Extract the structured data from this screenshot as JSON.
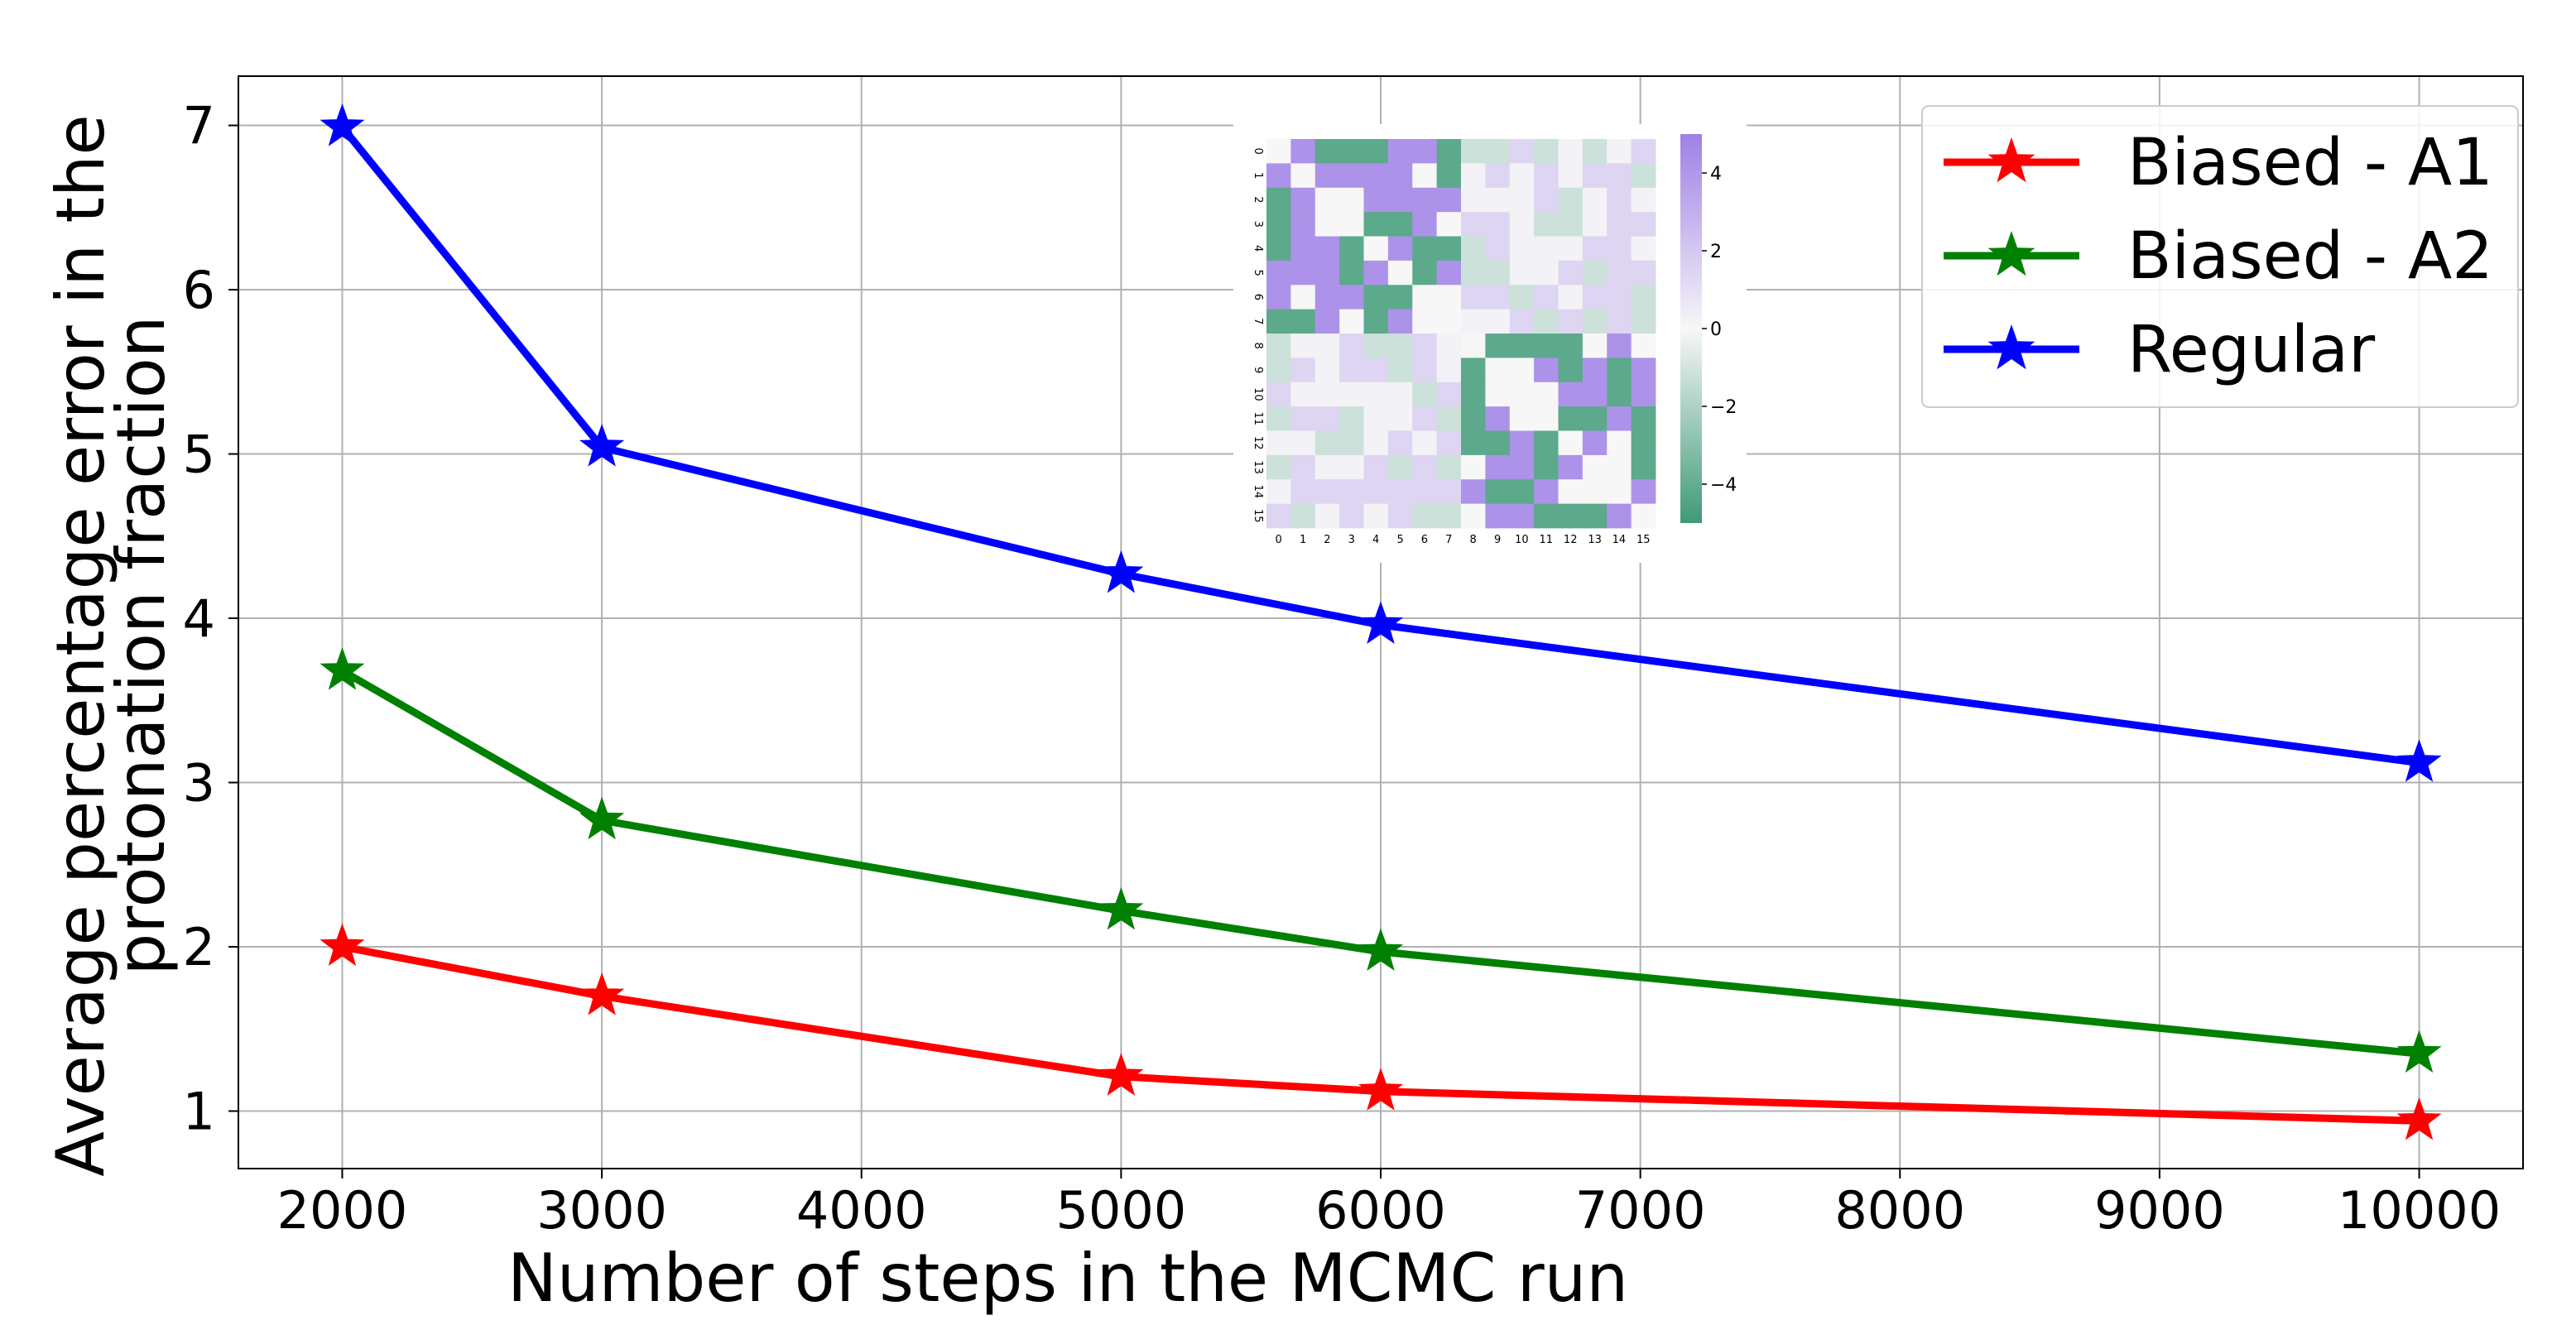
{
  "chart_data": {
    "type": "line",
    "title": "",
    "xlabel": "Number of steps in the MCMC run",
    "ylabel": [
      "Average percentage error in the",
      "protonation fraction"
    ],
    "xlim": [
      1600,
      10400
    ],
    "ylim": [
      0.65,
      7.3
    ],
    "xticks": [
      2000,
      3000,
      4000,
      5000,
      6000,
      7000,
      8000,
      9000,
      10000
    ],
    "yticks": [
      1,
      2,
      3,
      4,
      5,
      6,
      7
    ],
    "grid": true,
    "legend_position": "top-right",
    "marker": "star",
    "series": [
      {
        "name": "Biased - A1",
        "color": "#ff0000",
        "x": [
          2000,
          3000,
          5000,
          6000,
          10000
        ],
        "y": [
          2.0,
          1.7,
          1.21,
          1.12,
          0.94
        ]
      },
      {
        "name": "Biased - A2",
        "color": "#008000",
        "x": [
          2000,
          3000,
          5000,
          6000,
          10000
        ],
        "y": [
          3.68,
          2.77,
          2.22,
          1.97,
          1.35
        ]
      },
      {
        "name": "Regular",
        "color": "#0000ff",
        "x": [
          2000,
          3000,
          5000,
          6000,
          10000
        ],
        "y": [
          6.99,
          5.04,
          4.27,
          3.96,
          3.12
        ]
      }
    ],
    "inset": {
      "type": "heatmap",
      "size": 16,
      "row_labels": [
        "0",
        "1",
        "2",
        "3",
        "4",
        "5",
        "6",
        "7",
        "8",
        "9",
        "10",
        "11",
        "12",
        "13",
        "14",
        "15"
      ],
      "col_labels": [
        "0",
        "1",
        "2",
        "3",
        "4",
        "5",
        "6",
        "7",
        "8",
        "9",
        "10",
        "11",
        "12",
        "13",
        "14",
        "15"
      ],
      "colorbar_ticks": [
        4,
        2,
        0,
        -2,
        -4
      ],
      "vmin": -5,
      "vmax": 5,
      "colors": {
        "positive": "#9f7fe6",
        "zero": "#f7f7f7",
        "negative": "#3f9a78"
      }
    }
  }
}
